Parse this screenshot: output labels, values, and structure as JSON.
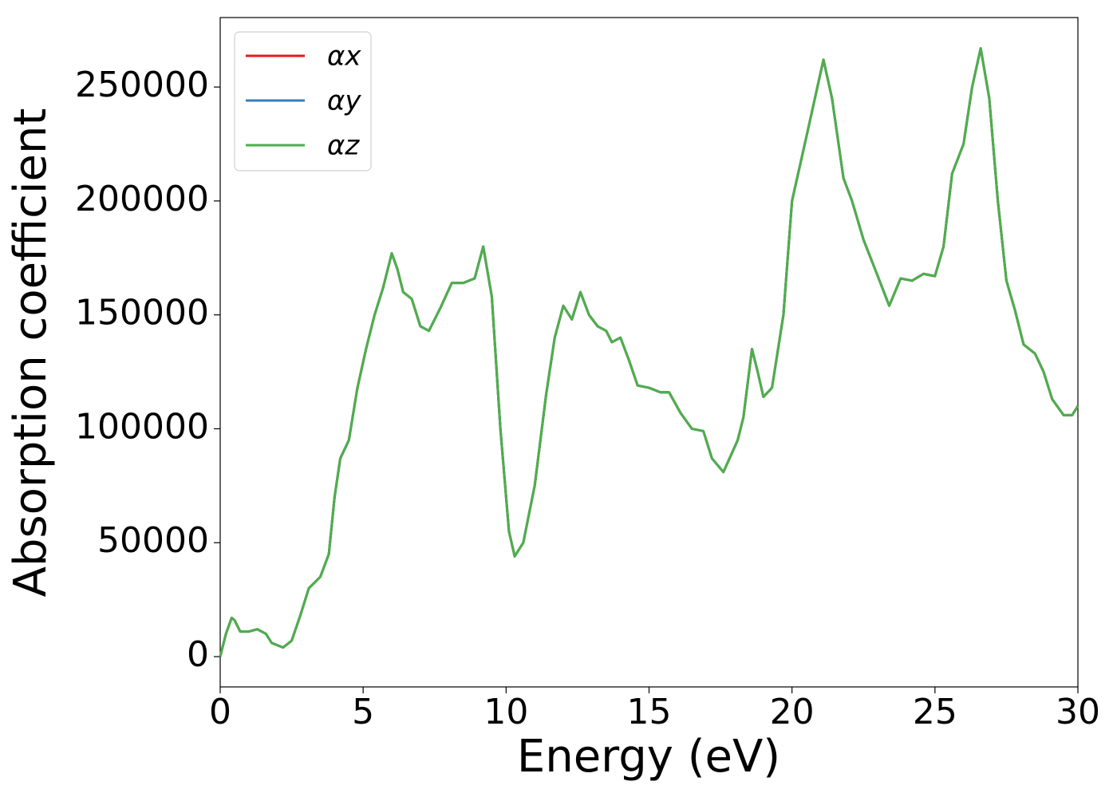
{
  "chart_data": {
    "type": "line",
    "x_label": "Energy (eV)",
    "y_label": "Absorption coefficient",
    "x": [
      0,
      0.2,
      0.4,
      0.5,
      0.7,
      1.0,
      1.3,
      1.6,
      1.8,
      2.2,
      2.5,
      2.8,
      3.1,
      3.5,
      3.8,
      4.0,
      4.2,
      4.5,
      4.8,
      5.1,
      5.4,
      5.7,
      6.0,
      6.2,
      6.4,
      6.7,
      7.0,
      7.3,
      7.7,
      8.1,
      8.5,
      8.9,
      9.2,
      9.5,
      9.8,
      10.1,
      10.3,
      10.6,
      11.0,
      11.4,
      11.7,
      12.0,
      12.3,
      12.6,
      12.9,
      13.2,
      13.5,
      13.7,
      14.0,
      14.3,
      14.6,
      15.0,
      15.4,
      15.7,
      16.1,
      16.5,
      16.9,
      17.2,
      17.6,
      18.1,
      18.3,
      18.6,
      18.8,
      19.0,
      19.3,
      19.7,
      20.0,
      20.5,
      20.8,
      21.1,
      21.4,
      21.8,
      22.1,
      22.5,
      23.0,
      23.4,
      23.8,
      24.2,
      24.6,
      25.0,
      25.3,
      25.6,
      26.0,
      26.3,
      26.6,
      26.9,
      27.2,
      27.5,
      27.8,
      28.1,
      28.5,
      28.8,
      29.1,
      29.5,
      29.8,
      30.0
    ],
    "series": [
      {
        "name": "αx",
        "color": "#e41a1c",
        "values": [
          0,
          10000,
          17000,
          16000,
          11000,
          11000,
          12000,
          10000,
          6000,
          4000,
          7000,
          18000,
          30000,
          35000,
          45000,
          70000,
          87000,
          95000,
          118000,
          135000,
          150000,
          162000,
          177000,
          170000,
          160000,
          157000,
          145000,
          143000,
          153000,
          164000,
          164000,
          166000,
          180000,
          158000,
          100000,
          55000,
          44000,
          50000,
          75000,
          115000,
          140000,
          154000,
          148000,
          160000,
          150000,
          145000,
          143000,
          138000,
          140000,
          130000,
          119000,
          118000,
          116000,
          116000,
          107000,
          100000,
          99000,
          87000,
          81000,
          95000,
          105000,
          135000,
          125000,
          114000,
          118000,
          150000,
          200000,
          228000,
          245000,
          262000,
          245000,
          210000,
          200000,
          183000,
          167000,
          154000,
          166000,
          165000,
          168000,
          167000,
          180000,
          212000,
          225000,
          250000,
          267000,
          245000,
          200000,
          165000,
          152000,
          137000,
          133000,
          125000,
          113000,
          106000,
          106000,
          110000
        ]
      },
      {
        "name": "αy",
        "color": "#377eb8",
        "values": [
          0,
          10000,
          17000,
          16000,
          11000,
          11000,
          12000,
          10000,
          6000,
          4000,
          7000,
          18000,
          30000,
          35000,
          45000,
          70000,
          87000,
          95000,
          118000,
          135000,
          150000,
          162000,
          177000,
          170000,
          160000,
          157000,
          145000,
          143000,
          153000,
          164000,
          164000,
          166000,
          180000,
          158000,
          100000,
          55000,
          44000,
          50000,
          75000,
          115000,
          140000,
          154000,
          148000,
          160000,
          150000,
          145000,
          143000,
          138000,
          140000,
          130000,
          119000,
          118000,
          116000,
          116000,
          107000,
          100000,
          99000,
          87000,
          81000,
          95000,
          105000,
          135000,
          125000,
          114000,
          118000,
          150000,
          200000,
          228000,
          245000,
          262000,
          245000,
          210000,
          200000,
          183000,
          167000,
          154000,
          166000,
          165000,
          168000,
          167000,
          180000,
          212000,
          225000,
          250000,
          267000,
          245000,
          200000,
          165000,
          152000,
          137000,
          133000,
          125000,
          113000,
          106000,
          106000,
          110000
        ]
      },
      {
        "name": "αz",
        "color": "#4daf4a",
        "values": [
          0,
          10000,
          17000,
          16000,
          11000,
          11000,
          12000,
          10000,
          6000,
          4000,
          7000,
          18000,
          30000,
          35000,
          45000,
          70000,
          87000,
          95000,
          118000,
          135000,
          150000,
          162000,
          177000,
          170000,
          160000,
          157000,
          145000,
          143000,
          153000,
          164000,
          164000,
          166000,
          180000,
          158000,
          100000,
          55000,
          44000,
          50000,
          75000,
          115000,
          140000,
          154000,
          148000,
          160000,
          150000,
          145000,
          143000,
          138000,
          140000,
          130000,
          119000,
          118000,
          116000,
          116000,
          107000,
          100000,
          99000,
          87000,
          81000,
          95000,
          105000,
          135000,
          125000,
          114000,
          118000,
          150000,
          200000,
          228000,
          245000,
          262000,
          245000,
          210000,
          200000,
          183000,
          167000,
          154000,
          166000,
          165000,
          168000,
          167000,
          180000,
          212000,
          225000,
          250000,
          267000,
          245000,
          200000,
          165000,
          152000,
          137000,
          133000,
          125000,
          113000,
          106000,
          106000,
          110000
        ]
      }
    ],
    "xlim": [
      0,
      30
    ],
    "xticks": [
      0,
      5,
      10,
      15,
      20,
      25,
      30
    ],
    "ylim": [
      -13300,
      280500
    ],
    "yticks": [
      0,
      50000,
      100000,
      150000,
      200000,
      250000
    ],
    "grid": false,
    "legend": "upper left"
  }
}
